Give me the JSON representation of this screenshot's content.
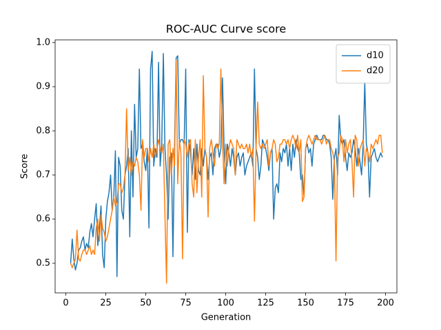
{
  "chart_data": {
    "type": "line",
    "title": "ROC-AUC Curve score",
    "x_label": "Generation",
    "y_label": "Score",
    "x": [
      3,
      4,
      5,
      6,
      7,
      8,
      9,
      10,
      11,
      12,
      13,
      14,
      15,
      16,
      17,
      18,
      19,
      20,
      21,
      22,
      23,
      24,
      25,
      26,
      27,
      28,
      29,
      30,
      31,
      32,
      33,
      34,
      35,
      36,
      37,
      38,
      39,
      40,
      41,
      42,
      43,
      44,
      45,
      46,
      47,
      48,
      49,
      50,
      51,
      52,
      53,
      54,
      55,
      56,
      57,
      58,
      59,
      60,
      61,
      62,
      63,
      64,
      65,
      66,
      67,
      68,
      69,
      70,
      71,
      72,
      73,
      74,
      75,
      76,
      77,
      78,
      79,
      80,
      81,
      82,
      83,
      84,
      85,
      86,
      87,
      88,
      89,
      90,
      91,
      92,
      93,
      94,
      95,
      96,
      97,
      98,
      99,
      100,
      101,
      102,
      103,
      104,
      105,
      106,
      107,
      108,
      109,
      110,
      111,
      112,
      113,
      114,
      115,
      116,
      117,
      118,
      119,
      120,
      121,
      122,
      123,
      124,
      125,
      126,
      127,
      128,
      129,
      130,
      131,
      132,
      133,
      134,
      135,
      136,
      137,
      138,
      139,
      140,
      141,
      142,
      143,
      144,
      145,
      146,
      147,
      148,
      149,
      150,
      151,
      152,
      153,
      154,
      155,
      156,
      157,
      158,
      159,
      160,
      161,
      162,
      163,
      164,
      165,
      166,
      167,
      168,
      169,
      170,
      171,
      172,
      173,
      174,
      175,
      176,
      177,
      178,
      179,
      180,
      181,
      182,
      183,
      184,
      185,
      186,
      187,
      188,
      189,
      190,
      191,
      192,
      193,
      194,
      195,
      196,
      197,
      198
    ],
    "series": [
      {
        "name": "d10",
        "color": "#1f77b4",
        "values": [
          0.5,
          0.555,
          0.51,
          0.485,
          0.5,
          0.53,
          0.535,
          0.55,
          0.56,
          0.53,
          0.545,
          0.535,
          0.57,
          0.59,
          0.56,
          0.6,
          0.635,
          0.54,
          0.58,
          0.63,
          0.52,
          0.49,
          0.6,
          0.64,
          0.66,
          0.7,
          0.62,
          0.65,
          0.755,
          0.47,
          0.74,
          0.72,
          0.62,
          0.6,
          0.7,
          0.72,
          0.76,
          0.56,
          0.8,
          0.65,
          0.86,
          0.74,
          0.76,
          0.94,
          0.76,
          0.77,
          0.73,
          0.71,
          0.76,
          0.58,
          0.94,
          0.98,
          0.72,
          0.76,
          0.74,
          0.955,
          0.72,
          0.77,
          0.975,
          0.76,
          0.7,
          0.6,
          0.74,
          0.75,
          0.515,
          0.76,
          0.965,
          0.97,
          0.77,
          0.78,
          0.78,
          0.77,
          0.94,
          0.57,
          0.78,
          0.75,
          0.7,
          0.76,
          0.69,
          0.77,
          0.71,
          0.7,
          0.76,
          0.72,
          0.76,
          0.74,
          0.69,
          0.74,
          0.75,
          0.7,
          0.76,
          0.77,
          0.77,
          0.74,
          0.76,
          0.92,
          0.76,
          0.68,
          0.77,
          0.75,
          0.72,
          0.76,
          0.74,
          0.7,
          0.74,
          0.75,
          0.72,
          0.74,
          0.75,
          0.7,
          0.72,
          0.73,
          0.74,
          0.75,
          0.72,
          0.94,
          0.76,
          0.74,
          0.69,
          0.72,
          0.78,
          0.77,
          0.76,
          0.74,
          0.71,
          0.75,
          0.76,
          0.6,
          0.67,
          0.68,
          0.66,
          0.75,
          0.73,
          0.76,
          0.75,
          0.77,
          0.72,
          0.76,
          0.71,
          0.77,
          0.74,
          0.78,
          0.76,
          0.75,
          0.69,
          0.7,
          0.65,
          0.76,
          0.77,
          0.75,
          0.76,
          0.72,
          0.77,
          0.78,
          0.79,
          0.78,
          0.78,
          0.78,
          0.79,
          0.79,
          0.78,
          0.78,
          0.77,
          0.74,
          0.645,
          0.74,
          0.76,
          0.7,
          0.835,
          0.78,
          0.77,
          0.78,
          0.74,
          0.71,
          0.75,
          0.74,
          0.75,
          0.78,
          0.76,
          0.72,
          0.76,
          0.73,
          0.7,
          0.77,
          0.91,
          0.77,
          0.75,
          0.65,
          0.74,
          0.75,
          0.76,
          0.74,
          0.73,
          0.74,
          0.75,
          0.74
        ]
      },
      {
        "name": "d20",
        "color": "#ff7f0e",
        "values": [
          0.5,
          0.49,
          0.5,
          0.51,
          0.575,
          0.51,
          0.505,
          0.52,
          0.53,
          0.53,
          0.52,
          0.53,
          0.54,
          0.52,
          0.53,
          0.52,
          0.58,
          0.6,
          0.55,
          0.61,
          0.58,
          0.57,
          0.55,
          0.56,
          0.58,
          0.6,
          0.62,
          0.65,
          0.63,
          0.64,
          0.68,
          0.68,
          0.66,
          0.67,
          0.7,
          0.85,
          0.71,
          0.74,
          0.7,
          0.73,
          0.72,
          0.74,
          0.73,
          0.7,
          0.62,
          0.78,
          0.74,
          0.76,
          0.76,
          0.73,
          0.76,
          0.74,
          0.77,
          0.74,
          0.76,
          0.78,
          0.76,
          0.75,
          0.77,
          0.61,
          0.455,
          0.77,
          0.78,
          0.7,
          0.76,
          0.72,
          0.96,
          0.68,
          0.78,
          0.75,
          0.51,
          0.78,
          0.77,
          0.74,
          0.77,
          0.78,
          0.68,
          0.65,
          0.78,
          0.66,
          0.74,
          0.78,
          0.65,
          0.925,
          0.76,
          0.74,
          0.605,
          0.76,
          0.78,
          0.75,
          0.72,
          0.77,
          0.76,
          0.77,
          0.94,
          0.78,
          0.68,
          0.77,
          0.72,
          0.76,
          0.78,
          0.77,
          0.76,
          0.7,
          0.78,
          0.77,
          0.76,
          0.77,
          0.76,
          0.76,
          0.77,
          0.75,
          0.77,
          0.74,
          0.76,
          0.595,
          0.76,
          0.865,
          0.77,
          0.76,
          0.77,
          0.76,
          0.77,
          0.78,
          0.72,
          0.75,
          0.76,
          0.78,
          0.77,
          0.73,
          0.74,
          0.77,
          0.77,
          0.78,
          0.78,
          0.77,
          0.78,
          0.76,
          0.78,
          0.79,
          0.78,
          0.76,
          0.79,
          0.75,
          0.78,
          0.64,
          0.65,
          0.76,
          0.78,
          0.79,
          0.78,
          0.77,
          0.78,
          0.79,
          0.78,
          0.78,
          0.78,
          0.77,
          0.78,
          0.79,
          0.77,
          0.78,
          0.78,
          0.76,
          0.75,
          0.73,
          0.505,
          0.74,
          0.75,
          0.79,
          0.78,
          0.73,
          0.78,
          0.75,
          0.77,
          0.78,
          0.73,
          0.65,
          0.79,
          0.78,
          0.72,
          0.76,
          0.77,
          0.78,
          0.72,
          0.76,
          0.75,
          0.73,
          0.77,
          0.76,
          0.77,
          0.78,
          0.77,
          0.79,
          0.79,
          0.75
        ]
      }
    ],
    "xlim": [
      -6.7,
      207.1
    ],
    "xticks": [
      0,
      25,
      50,
      75,
      100,
      125,
      150,
      175,
      200
    ],
    "ylim": [
      0.433,
      1.006
    ],
    "yticks": [
      0.5,
      0.6,
      0.7,
      0.8,
      0.9,
      {
        "value": 1,
        "label": "1.0"
      }
    ],
    "legend": "upper right",
    "grid": false
  }
}
